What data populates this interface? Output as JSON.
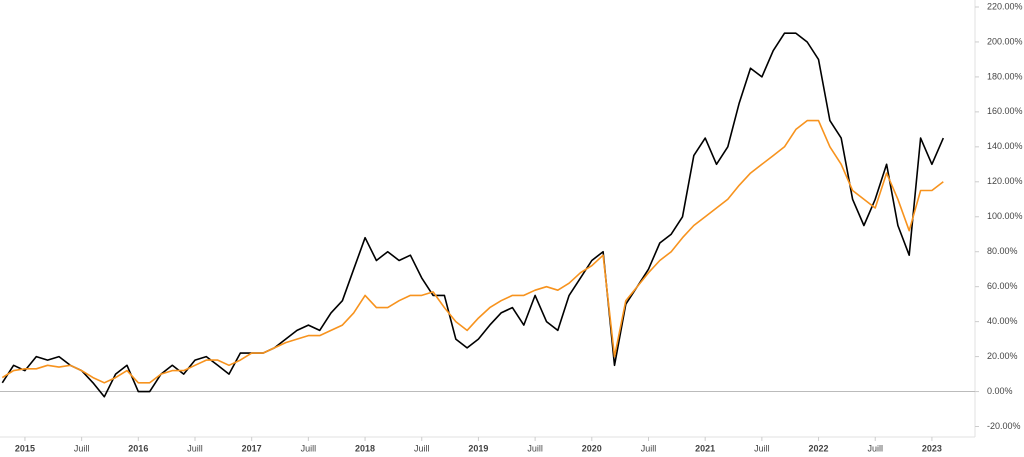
{
  "chart_data": {
    "type": "line",
    "x": [
      2014.8,
      2014.9,
      2015.0,
      2015.1,
      2015.2,
      2015.3,
      2015.4,
      2015.5,
      2015.6,
      2015.7,
      2015.8,
      2015.9,
      2016.0,
      2016.1,
      2016.2,
      2016.3,
      2016.4,
      2016.5,
      2016.6,
      2016.7,
      2016.8,
      2016.9,
      2017.0,
      2017.1,
      2017.2,
      2017.3,
      2017.4,
      2017.5,
      2017.6,
      2017.7,
      2017.8,
      2017.9,
      2018.0,
      2018.1,
      2018.2,
      2018.3,
      2018.4,
      2018.5,
      2018.6,
      2018.7,
      2018.8,
      2018.9,
      2019.0,
      2019.1,
      2019.2,
      2019.3,
      2019.4,
      2019.5,
      2019.6,
      2019.7,
      2019.8,
      2019.9,
      2020.0,
      2020.1,
      2020.2,
      2020.3,
      2020.4,
      2020.5,
      2020.6,
      2020.7,
      2020.8,
      2020.9,
      2021.0,
      2021.1,
      2021.2,
      2021.3,
      2021.4,
      2021.5,
      2021.6,
      2021.7,
      2021.8,
      2021.9,
      2022.0,
      2022.1,
      2022.2,
      2022.3,
      2022.4,
      2022.5,
      2022.6,
      2022.7,
      2022.8,
      2022.9,
      2023.0,
      2023.1
    ],
    "series": [
      {
        "color": "#000000",
        "values": [
          5,
          15,
          12,
          20,
          18,
          20,
          15,
          12,
          5,
          -3,
          10,
          15,
          0,
          0,
          10,
          15,
          10,
          18,
          20,
          15,
          10,
          22,
          22,
          22,
          25,
          30,
          35,
          38,
          35,
          45,
          52,
          70,
          88,
          75,
          80,
          75,
          78,
          65,
          55,
          55,
          30,
          25,
          30,
          38,
          45,
          48,
          38,
          55,
          40,
          35,
          55,
          65,
          75,
          80,
          15,
          50,
          60,
          70,
          85,
          90,
          100,
          135,
          145,
          130,
          140,
          165,
          185,
          180,
          195,
          205,
          205,
          200,
          190,
          155,
          145,
          110,
          95,
          110,
          130,
          95,
          78,
          145,
          130,
          145
        ]
      },
      {
        "color": "#f7931e",
        "values": [
          8,
          12,
          13,
          13,
          15,
          14,
          15,
          12,
          8,
          5,
          8,
          12,
          5,
          5,
          10,
          12,
          12,
          15,
          18,
          18,
          15,
          18,
          22,
          22,
          25,
          28,
          30,
          32,
          32,
          35,
          38,
          45,
          55,
          48,
          48,
          52,
          55,
          55,
          57,
          48,
          40,
          35,
          42,
          48,
          52,
          55,
          55,
          58,
          60,
          58,
          62,
          68,
          72,
          78,
          20,
          52,
          60,
          68,
          75,
          80,
          88,
          95,
          100,
          105,
          110,
          118,
          125,
          130,
          135,
          140,
          150,
          155,
          155,
          140,
          130,
          115,
          110,
          105,
          125,
          110,
          92,
          115,
          115,
          120
        ]
      }
    ],
    "xlim": [
      2014.78,
      2023.38
    ],
    "xticks": [
      2015,
      {
        "value": 2015.5,
        "label": "Juill"
      },
      2016,
      {
        "value": 2016.5,
        "label": "Juill"
      },
      2017,
      {
        "value": 2017.5,
        "label": "Juill"
      },
      2018,
      {
        "value": 2018.5,
        "label": "Juill"
      },
      2019,
      {
        "value": 2019.5,
        "label": "Juill"
      },
      2020,
      {
        "value": 2020.5,
        "label": "Juill"
      },
      2021,
      {
        "value": 2021.5,
        "label": "Juill"
      },
      2022,
      {
        "value": 2022.5,
        "label": "Juill"
      },
      2023
    ],
    "ylim": [
      -26,
      224
    ],
    "yticks": [
      {
        "value": -20,
        "label": "-20.00%"
      },
      {
        "value": 0,
        "label": "0.00%"
      },
      {
        "value": 20,
        "label": "20.00%"
      },
      {
        "value": 40,
        "label": "40.00%"
      },
      {
        "value": 60,
        "label": "60.00%"
      },
      {
        "value": 80,
        "label": "80.00%"
      },
      {
        "value": 100,
        "label": "100.00%"
      },
      {
        "value": 120,
        "label": "120.00%"
      },
      {
        "value": 140,
        "label": "140.00%"
      },
      {
        "value": 160,
        "label": "160.00%"
      },
      {
        "value": 180,
        "label": "180.00%"
      },
      {
        "value": 200,
        "label": "200.00%"
      },
      {
        "value": 220,
        "label": "220.00%"
      }
    ],
    "baseline": 0
  }
}
